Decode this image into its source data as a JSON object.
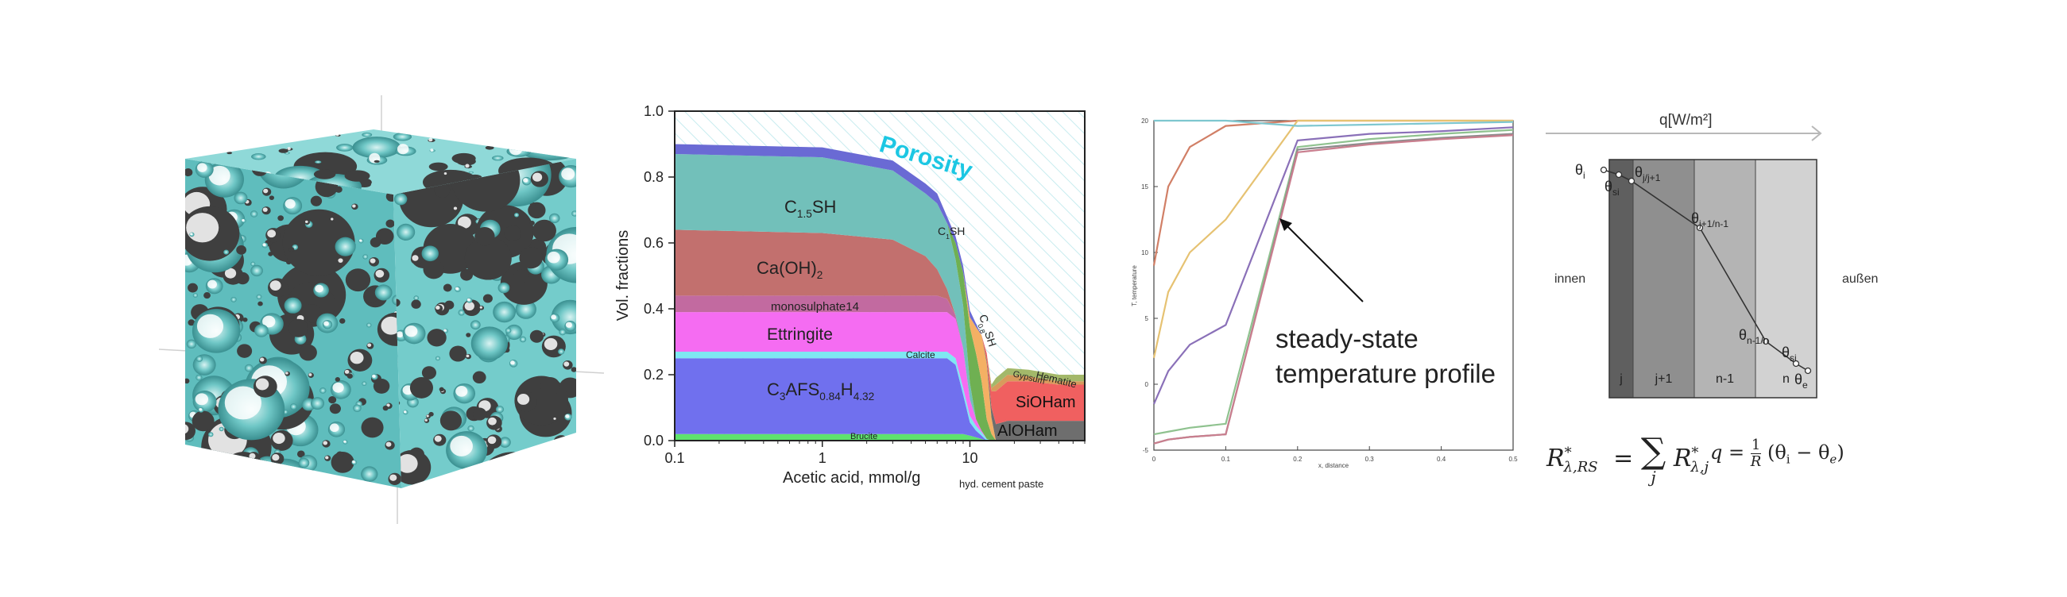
{
  "panels": [
    {
      "id": "porous-cube"
    },
    {
      "id": "phase-assemblage"
    },
    {
      "id": "temperature-profile"
    },
    {
      "id": "wall-layers"
    }
  ],
  "chart_data": [
    {
      "type": "area",
      "x_scale": "log",
      "xlabel": "Acetic acid, mmol/g",
      "xlabel_sub": "hyd. cement paste",
      "ylabel": "Vol. fractions",
      "xlim": [
        0.1,
        60
      ],
      "ylim": [
        0,
        1
      ],
      "xticks": [
        "0.1",
        "1",
        "10"
      ],
      "yticks": [
        "0.0",
        "0.2",
        "0.4",
        "0.6",
        "0.8",
        "1.0"
      ],
      "x": [
        0.1,
        1,
        3,
        5,
        6,
        7,
        8,
        9,
        10,
        11,
        12,
        13,
        14,
        15,
        18,
        25,
        40,
        60
      ],
      "series": [
        {
          "name": "Brucite",
          "color": "#5ee26e",
          "values": [
            0.02,
            0.02,
            0.02,
            0.02,
            0.02,
            0.02,
            0.02,
            0.02,
            0.015,
            0.01,
            0.005,
            0,
            0,
            0,
            0,
            0,
            0,
            0
          ]
        },
        {
          "name": "C3AFS0.84H4.32",
          "color": "#7070ee",
          "values": [
            0.23,
            0.23,
            0.23,
            0.23,
            0.23,
            0.23,
            0.21,
            0.12,
            0.04,
            0.02,
            0.01,
            0,
            0,
            0,
            0,
            0,
            0,
            0
          ]
        },
        {
          "name": "Calcite",
          "color": "#7ee8f2",
          "values": [
            0.02,
            0.02,
            0.02,
            0.02,
            0.02,
            0.02,
            0.02,
            0.02,
            0.02,
            0.015,
            0.01,
            0.005,
            0,
            0,
            0,
            0,
            0,
            0
          ]
        },
        {
          "name": "Ettringite",
          "color": "#f56cf2",
          "values": [
            0.12,
            0.12,
            0.12,
            0.12,
            0.12,
            0.12,
            0.12,
            0.12,
            0.05,
            0.02,
            0.005,
            0,
            0,
            0,
            0,
            0,
            0,
            0
          ]
        },
        {
          "name": "monosulphate14",
          "color": "#c26aa0",
          "values": [
            0.05,
            0.05,
            0.05,
            0.05,
            0.05,
            0.04,
            0.01,
            0,
            0,
            0,
            0,
            0,
            0,
            0,
            0,
            0,
            0,
            0
          ]
        },
        {
          "name": "Ca(OH)2",
          "color": "#c2706e",
          "values": [
            0.2,
            0.19,
            0.17,
            0.12,
            0.08,
            0.03,
            0,
            0,
            0,
            0,
            0,
            0,
            0,
            0,
            0,
            0,
            0,
            0
          ]
        },
        {
          "name": "C1.5SH",
          "color": "#72c0ba",
          "values": [
            0.23,
            0.23,
            0.21,
            0.19,
            0.2,
            0.2,
            0.17,
            0.13,
            0.05,
            0,
            0,
            0,
            0,
            0,
            0,
            0,
            0,
            0
          ]
        },
        {
          "name": "C1SH",
          "color": "#6fb052",
          "values": [
            0,
            0,
            0,
            0,
            0,
            0,
            0.05,
            0.1,
            0.17,
            0.2,
            0.15,
            0.06,
            0.02,
            0,
            0,
            0,
            0,
            0
          ]
        },
        {
          "name": "C0.8SH",
          "color": "#f4b064",
          "values": [
            0,
            0,
            0,
            0,
            0,
            0,
            0,
            0,
            0.03,
            0.08,
            0.14,
            0.17,
            0.05,
            0,
            0,
            0,
            0,
            0
          ]
        },
        {
          "name": "AlOHam",
          "color": "#6e6e6e",
          "values": [
            0,
            0,
            0,
            0,
            0,
            0,
            0,
            0,
            0,
            0,
            0,
            0.01,
            0.03,
            0.05,
            0.06,
            0.06,
            0.06,
            0.06
          ]
        },
        {
          "name": "SiOHam",
          "color": "#f06060",
          "values": [
            0,
            0,
            0,
            0,
            0,
            0,
            0,
            0,
            0,
            0,
            0,
            0.02,
            0.05,
            0.1,
            0.12,
            0.12,
            0.11,
            0.11
          ]
        },
        {
          "name": "Gypsum",
          "color": "#d89a5c",
          "values": [
            0,
            0,
            0,
            0,
            0,
            0,
            0,
            0,
            0,
            0,
            0,
            0,
            0.01,
            0.02,
            0.02,
            0.015,
            0.01,
            0.01
          ]
        },
        {
          "name": "Hematite",
          "color": "#a3b86a",
          "values": [
            0,
            0,
            0,
            0,
            0,
            0,
            0,
            0,
            0,
            0,
            0,
            0,
            0.01,
            0.02,
            0.02,
            0.02,
            0.02,
            0.02
          ]
        }
      ],
      "top_layer": {
        "color": "#6a6ad4",
        "values": [
          0.03,
          0.03,
          0.03,
          0.03,
          0.03,
          0.02,
          0.02,
          0.02,
          0.02,
          0.01,
          0,
          0,
          0,
          0,
          0,
          0,
          0,
          0
        ]
      },
      "porosity_label": "Porosity",
      "labels": {
        "c15sh": "C",
        "c15sh_sub": "1.5",
        "c15sh_tail": "SH",
        "caoh": "Ca(OH)",
        "caoh_sub": "2",
        "mono": "monosulphate14",
        "ettr": "Ettringite",
        "calcite": "Calcite",
        "c3afs": "C",
        "c3afs_sub1": "3",
        "c3afs_mid": "AFS",
        "c3afs_sub2": "0.84",
        "c3afs_h": "H",
        "c3afs_sub3": "4.32",
        "brucite": "Brucite",
        "c1sh": "C",
        "c1sh_sub": "1",
        "c1sh_tail": "SH",
        "c08sh": "C",
        "c08sh_sub": "0.8",
        "c08sh_tail": "SH",
        "gypsum": "Gypsum",
        "hematite": "Hematite",
        "sioham": "SiOHam",
        "aloham": "AlOHam"
      }
    },
    {
      "type": "line",
      "xlabel": "x, distance",
      "ylabel": "T, temperature",
      "xlim": [
        0,
        0.5
      ],
      "ylim": [
        -5,
        20
      ],
      "xticks": [
        "0",
        "0.1",
        "0.2",
        "0.3",
        "0.4",
        "0.5"
      ],
      "yticks": [
        "-5",
        "0",
        "5",
        "10",
        "15",
        "20"
      ],
      "x": [
        0,
        0.02,
        0.05,
        0.1,
        0.2,
        0.3,
        0.4,
        0.5
      ],
      "series": [
        {
          "color": "#d17f66",
          "values": [
            9,
            15,
            18,
            19.6,
            20,
            20,
            20,
            20
          ]
        },
        {
          "color": "#e6c272",
          "values": [
            2,
            7,
            10,
            12.5,
            20,
            20,
            20,
            20
          ]
        },
        {
          "color": "#8a70b8",
          "values": [
            -1.5,
            1,
            3,
            4.5,
            18.5,
            19,
            19.2,
            19.5
          ]
        },
        {
          "color": "#8fc28f",
          "values": [
            -3.8,
            -3.6,
            -3.3,
            -3,
            18,
            18.6,
            19,
            19.3
          ]
        },
        {
          "color": "#8c8c8c",
          "values": [
            -4.5,
            -4.2,
            -4,
            -3.8,
            17.8,
            18.3,
            18.7,
            19
          ]
        },
        {
          "color": "#c97e8e",
          "values": [
            -4.5,
            -4.2,
            -4,
            -3.8,
            17.6,
            18.2,
            18.6,
            18.9
          ]
        },
        {
          "color": "#7ec7cf",
          "values": [
            20,
            20,
            20,
            20,
            19.6,
            19.7,
            19.8,
            19.9
          ]
        }
      ],
      "annotation": [
        "steady-state",
        "temperature profile"
      ]
    }
  ],
  "diagram": {
    "heat_flux": "q[W/m²]",
    "inside": "innen",
    "outside": "außen",
    "layers": [
      {
        "label": "j",
        "color": "#5f5f5f"
      },
      {
        "label": "j+1",
        "color": "#8f8f8f"
      },
      {
        "label": "n-1",
        "color": "#b4b4b4"
      },
      {
        "label": "n",
        "color": "#d2d2d2"
      }
    ],
    "theta": "θ",
    "points": [
      {
        "sym": "θ",
        "sub": "i"
      },
      {
        "sym": "θ",
        "sub": "si"
      },
      {
        "sym": "θ",
        "sub": "j/j+1"
      },
      {
        "sym": "θ",
        "sub": "j+1/n-1"
      },
      {
        "sym": "θ",
        "sub": "n-1/n"
      },
      {
        "sym": "θ",
        "sub": "si"
      },
      {
        "sym": "θ",
        "sub": "e"
      }
    ],
    "formula1": {
      "lhs": "R",
      "lhs_sub": "λ,RS",
      "sum_idx": "j",
      "rhs": "R",
      "rhs_sub": "λ,j",
      "star": "*",
      "eq": "=",
      "sum": "∑"
    },
    "formula2": {
      "q": "q",
      "eq": "=",
      "num": "1",
      "den": "R",
      "paren": "(θ",
      "sub_i": "i",
      "minus": " − θ",
      "sub_e": "e",
      "close": ")"
    }
  }
}
